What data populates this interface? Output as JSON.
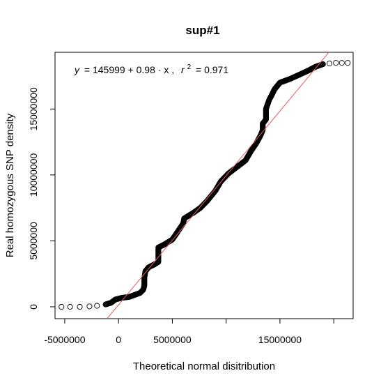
{
  "chart_data": {
    "type": "scatter",
    "title": "sup#1",
    "xlabel": "Theoretical normal disitribution",
    "ylabel": "Real homozygous SNP density",
    "xlim": [
      -5900000,
      21800000
    ],
    "ylim": [
      -900000,
      19300000
    ],
    "x_ticks": [
      -5000000,
      0,
      5000000,
      10000000,
      15000000,
      20000000
    ],
    "x_tick_labels": [
      "-5000000",
      "0",
      "5000000",
      "",
      "15000000",
      ""
    ],
    "y_ticks": [
      0,
      5000000,
      10000000,
      15000000
    ],
    "y_tick_labels": [
      "0",
      "5000000",
      "10000000",
      "15000000"
    ],
    "grid": false,
    "fit_line": {
      "intercept": 145999,
      "slope": 0.98,
      "color": "#e06060"
    },
    "equation": {
      "y": "y",
      "rhs": "= 145999 + 0.98 · x ,",
      "r": "r",
      "exp": "2",
      "r2_value": "= 0.971"
    },
    "marker_color": "#000000",
    "quantile_curve": [
      [
        -5300000,
        0
      ],
      [
        -4500000,
        0
      ],
      [
        -3600000,
        0
      ],
      [
        -2700000,
        30000
      ],
      [
        -2000000,
        80000
      ],
      [
        -1200000,
        180000
      ],
      [
        -700000,
        300000
      ],
      [
        -300000,
        550000
      ],
      [
        300000,
        680000
      ],
      [
        1000000,
        750000
      ],
      [
        1500000,
        900000
      ],
      [
        2000000,
        1050000
      ],
      [
        2300000,
        1300000
      ],
      [
        2400000,
        1600000
      ],
      [
        2400000,
        2200000
      ],
      [
        2500000,
        2700000
      ],
      [
        2800000,
        3000000
      ],
      [
        3300000,
        3200000
      ],
      [
        3700000,
        3400000
      ],
      [
        3700000,
        4500000
      ],
      [
        4200000,
        4700000
      ],
      [
        5000000,
        5100000
      ],
      [
        5500000,
        5700000
      ],
      [
        6000000,
        6300000
      ],
      [
        6100000,
        6700000
      ],
      [
        6900000,
        7100000
      ],
      [
        7600000,
        7500000
      ],
      [
        8200000,
        8000000
      ],
      [
        9000000,
        8800000
      ],
      [
        9500000,
        9500000
      ],
      [
        10200000,
        10100000
      ],
      [
        11000000,
        10600000
      ],
      [
        11800000,
        11100000
      ],
      [
        12300000,
        11800000
      ],
      [
        12800000,
        12400000
      ],
      [
        13200000,
        13000000
      ],
      [
        13400000,
        13400000
      ],
      [
        13400000,
        13900000
      ],
      [
        13700000,
        14200000
      ],
      [
        13700000,
        15000000
      ],
      [
        14000000,
        15700000
      ],
      [
        14200000,
        16000000
      ],
      [
        14500000,
        16500000
      ],
      [
        15000000,
        17000000
      ],
      [
        16000000,
        17300000
      ],
      [
        16800000,
        17600000
      ],
      [
        17600000,
        17900000
      ],
      [
        18300000,
        18200000
      ],
      [
        19000000,
        18400000
      ],
      [
        20200000,
        18500000
      ],
      [
        21300000,
        18500000
      ]
    ],
    "dense_ranges": [
      [
        -1500000,
        20000000
      ]
    ]
  }
}
